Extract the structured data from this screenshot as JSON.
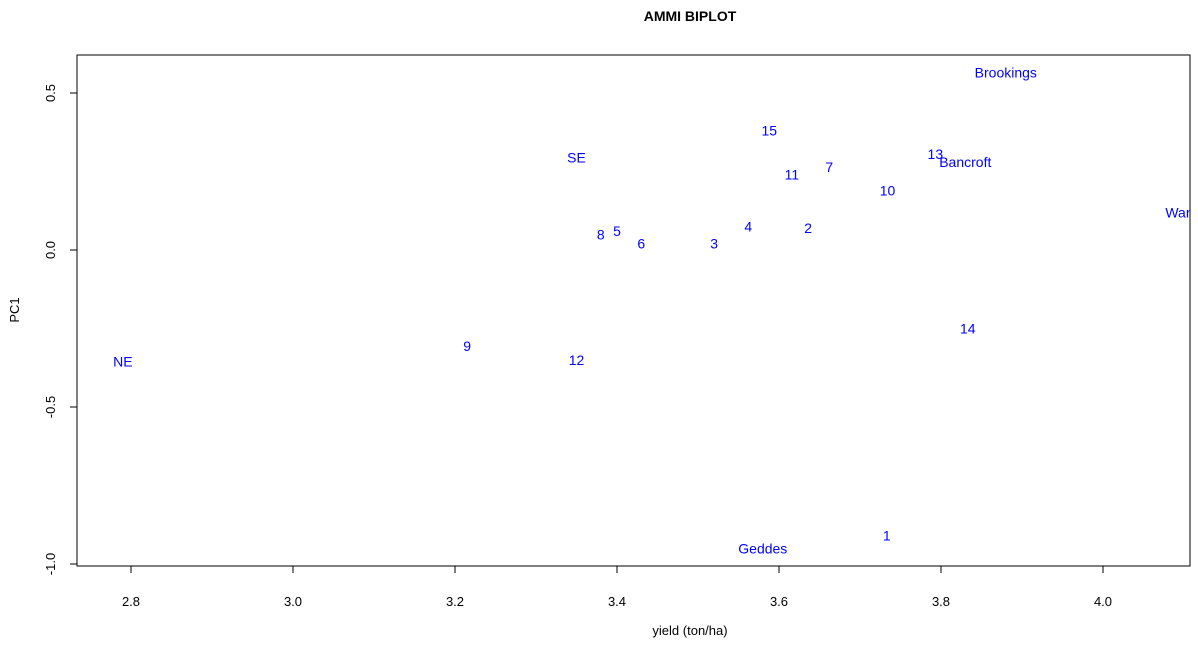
{
  "chart_data": {
    "type": "scatter",
    "title": "AMMI BIPLOT",
    "xlabel": "yield (ton/ha)",
    "ylabel": "PC1",
    "xlim": [
      2.72,
      4.09
    ],
    "ylim": [
      -1.0,
      0.6
    ],
    "xticks": [
      "2.8",
      "3.0",
      "3.2",
      "3.4",
      "3.6",
      "3.8",
      "4.0"
    ],
    "yticks": [
      "-1.0",
      "-0.5",
      "0.0",
      "0.5"
    ],
    "grid": false,
    "label_color": "#0000ff",
    "series": [
      {
        "name": "genotypes",
        "points": [
          {
            "label": "1",
            "x": 3.733,
            "y": -0.91
          },
          {
            "label": "2",
            "x": 3.636,
            "y": 0.07
          },
          {
            "label": "3",
            "x": 3.52,
            "y": 0.02
          },
          {
            "label": "4",
            "x": 3.562,
            "y": 0.075
          },
          {
            "label": "5",
            "x": 3.4,
            "y": 0.06
          },
          {
            "label": "6",
            "x": 3.43,
            "y": 0.02
          },
          {
            "label": "7",
            "x": 3.662,
            "y": 0.265
          },
          {
            "label": "8",
            "x": 3.38,
            "y": 0.05
          },
          {
            "label": "9",
            "x": 3.215,
            "y": -0.305
          },
          {
            "label": "10",
            "x": 3.734,
            "y": 0.19
          },
          {
            "label": "11",
            "x": 3.616,
            "y": 0.24
          },
          {
            "label": "12",
            "x": 3.35,
            "y": -0.35
          },
          {
            "label": "13",
            "x": 3.793,
            "y": 0.305
          },
          {
            "label": "14",
            "x": 3.833,
            "y": -0.25
          },
          {
            "label": "15",
            "x": 3.588,
            "y": 0.38
          }
        ]
      },
      {
        "name": "environments",
        "points": [
          {
            "label": "Brookings",
            "x": 3.88,
            "y": 0.565
          },
          {
            "label": "Bancroft",
            "x": 3.83,
            "y": 0.28
          },
          {
            "label": "Warner",
            "x": 4.105,
            "y": 0.12
          },
          {
            "label": "SE",
            "x": 3.35,
            "y": 0.295
          },
          {
            "label": "NE",
            "x": 2.79,
            "y": -0.355
          },
          {
            "label": "Geddes",
            "x": 3.58,
            "y": -0.95
          }
        ]
      }
    ]
  }
}
